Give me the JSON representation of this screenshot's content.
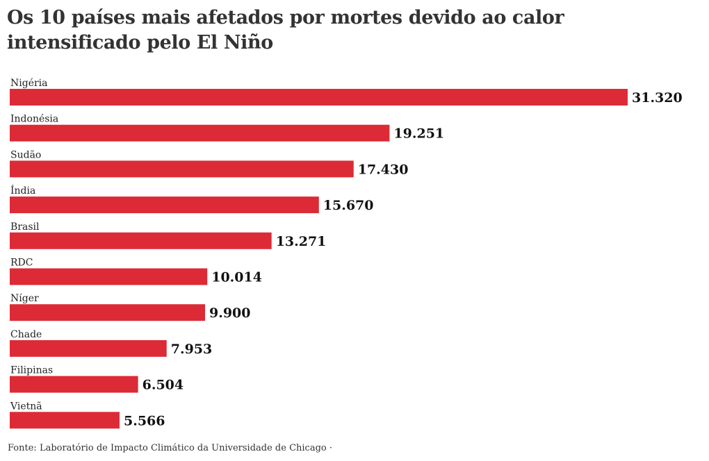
{
  "chart_data": {
    "type": "bar",
    "orientation": "horizontal",
    "title": "Os 10 países mais afetados por mortes devido ao calor intensificado pelo El Niño",
    "categories": [
      "Nigéria",
      "Indonésia",
      "Sudão",
      "Índia",
      "Brasil",
      "RDC",
      "Níger",
      "Chade",
      "Filipinas",
      "Vietnã"
    ],
    "values": [
      31320,
      19251,
      17430,
      15670,
      13271,
      10014,
      9900,
      7953,
      6504,
      5566
    ],
    "value_labels": [
      "31.320",
      "19.251",
      "17.430",
      "15.670",
      "13.271",
      "10.014",
      "9.900",
      "7.953",
      "6.504",
      "5.566"
    ],
    "bar_color": "#dc2b36",
    "grid": false,
    "legend": "none",
    "source": "Fonte: Laboratório de Impacto Climático da Universidade de Chicago ·"
  }
}
